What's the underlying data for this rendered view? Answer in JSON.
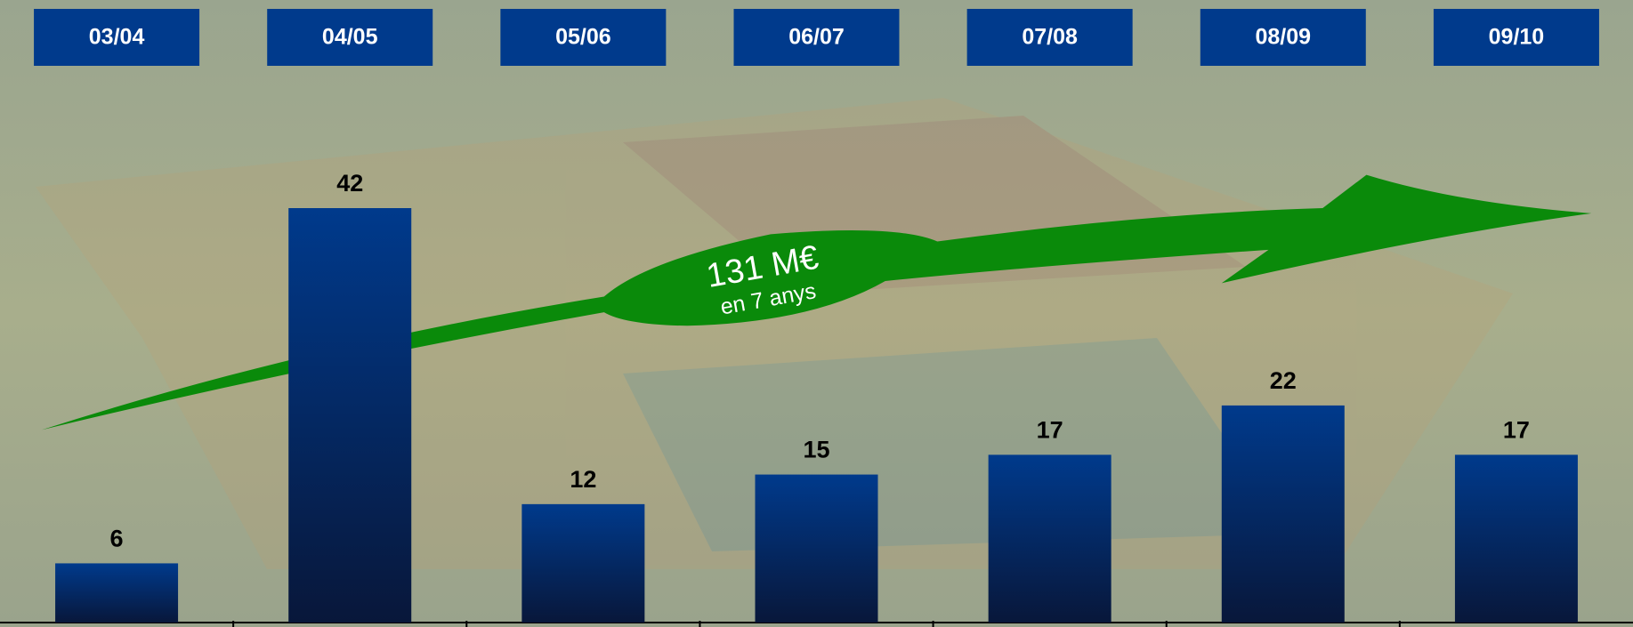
{
  "chart_data": {
    "type": "bar",
    "categories": [
      "03/04",
      "04/05",
      "05/06",
      "06/07",
      "07/08",
      "08/09",
      "09/10"
    ],
    "values": [
      6,
      42,
      12,
      15,
      17,
      22,
      17
    ],
    "color": "#003a8c",
    "annotations": [
      "131 M€",
      "en 7 anys"
    ]
  }
}
